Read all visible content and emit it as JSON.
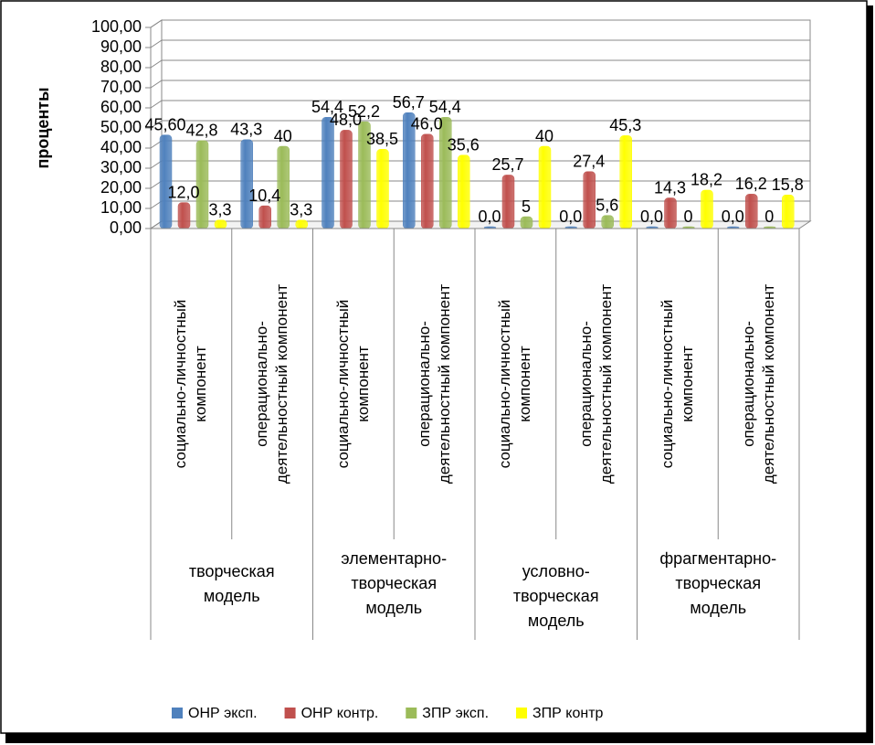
{
  "chart_data": {
    "type": "bar",
    "y_label": "проценты",
    "categories": [
      "социально-личностный компонент",
      "операционально-деятельностный компонент",
      "социально-личностный компонент",
      "операционально-деятельностный компонент",
      "социально-личностный компонент",
      "операционально-деятельностный компонент",
      "социально-личностный компонент",
      "операционально-деятельностный компонент"
    ],
    "groups": [
      "творческая модель",
      "элементарно-творческая модель",
      "условно-творческая модель",
      "фрагментарно-творческая модель"
    ],
    "series": [
      {
        "name": "ОНР эксп.",
        "color": "#4F81BD",
        "values": [
          45.6,
          43.3,
          54.4,
          56.7,
          0,
          0,
          0,
          0
        ],
        "value_labels": [
          "45,60",
          "43,3",
          "54,4",
          "56,7",
          "0,0",
          "0,0",
          "0,0",
          "0,0"
        ]
      },
      {
        "name": "ОНР контр.",
        "color": "#C0504D",
        "values": [
          12.0,
          10.4,
          48.0,
          46.0,
          25.7,
          27.4,
          14.3,
          16.2
        ],
        "value_labels": [
          "12,0",
          "10,4",
          "48,0",
          "46,0",
          "25,7",
          "27,4",
          "14,3",
          "16,2"
        ]
      },
      {
        "name": "ЗПР эксп.",
        "color": "#9BBB59",
        "values": [
          42.8,
          40,
          52.2,
          54.4,
          5,
          5.6,
          0,
          0
        ],
        "value_labels": [
          "42,8",
          "40",
          "52,2",
          "54,4",
          "5",
          "5,6",
          "0",
          "0"
        ]
      },
      {
        "name": "ЗПР контр",
        "color": "#FFFF00",
        "values": [
          3.3,
          3.3,
          38.5,
          35.6,
          40,
          45.3,
          18.2,
          15.8
        ],
        "value_labels": [
          "3,3",
          "3,3",
          "38,5",
          "35,6",
          "40",
          "45,3",
          "18,2",
          "15,8"
        ]
      }
    ],
    "ylim": [
      0,
      100
    ],
    "yticks": [
      {
        "value": 0,
        "label": "0,00"
      },
      {
        "value": 10,
        "label": "10,00"
      },
      {
        "value": 20,
        "label": "20,00"
      },
      {
        "value": 30,
        "label": "30,00"
      },
      {
        "value": 40,
        "label": "40,00"
      },
      {
        "value": 50,
        "label": "50,00"
      },
      {
        "value": 60,
        "label": "60,00"
      },
      {
        "value": 70,
        "label": "70,00"
      },
      {
        "value": 80,
        "label": "80,00"
      },
      {
        "value": 90,
        "label": "90,00"
      },
      {
        "value": 100,
        "label": "100,00"
      }
    ],
    "grid": true,
    "legend": "bottom"
  }
}
